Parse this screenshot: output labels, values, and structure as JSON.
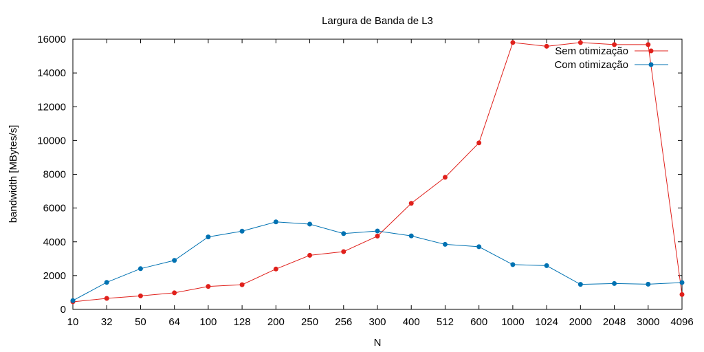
{
  "chart_data": {
    "type": "line",
    "title": "Largura de Banda de L3",
    "xlabel": "N",
    "ylabel": "bandwidth [MBytes/s]",
    "ylim": [
      0,
      16000
    ],
    "yticks": [
      0,
      2000,
      4000,
      6000,
      8000,
      10000,
      12000,
      14000,
      16000
    ],
    "categories": [
      "10",
      "32",
      "50",
      "64",
      "100",
      "128",
      "200",
      "250",
      "256",
      "300",
      "400",
      "512",
      "600",
      "1000",
      "1024",
      "2000",
      "2048",
      "3000",
      "4096"
    ],
    "legend_position": "top-right",
    "grid": false,
    "series": [
      {
        "name": "Sem otimização",
        "color": "#e0201b",
        "values": [
          450,
          650,
          800,
          980,
          1360,
          1460,
          2390,
          3200,
          3420,
          4340,
          6280,
          7820,
          9860,
          15800,
          15580,
          15800,
          15680,
          15680,
          880
        ]
      },
      {
        "name": "Com otimização",
        "color": "#0072b2",
        "values": [
          520,
          1600,
          2410,
          2900,
          4290,
          4630,
          5180,
          5050,
          4490,
          4640,
          4350,
          3850,
          3710,
          2650,
          2590,
          1480,
          1530,
          1490,
          1590
        ]
      }
    ]
  }
}
